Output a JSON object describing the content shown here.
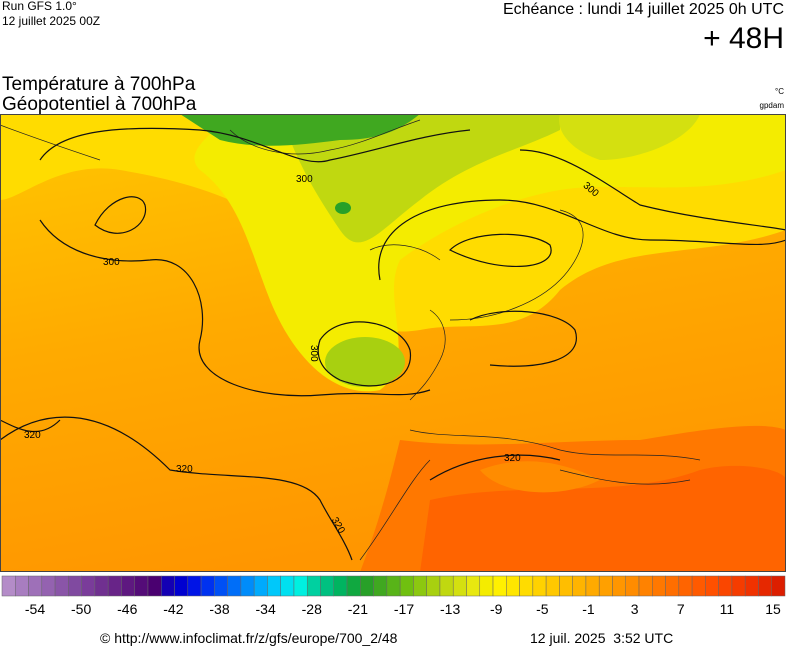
{
  "header": {
    "run": "Run GFS 1.0°",
    "date": "12 juillet 2025 00Z",
    "echeance": "Echéance : lundi 14 juillet 2025 0h UTC",
    "lead": "+ 48H"
  },
  "titles": [
    "Température à 700hPa",
    "Géopotentiel à 700hPa"
  ],
  "units": [
    "°C",
    "gpdam"
  ],
  "contour_labels": [
    "300",
    "300",
    "300",
    "300",
    "320",
    "320",
    "320",
    "320"
  ],
  "legend": {
    "labels": [
      -54,
      -50,
      -46,
      -42,
      -38,
      -34,
      -28,
      -21,
      -17,
      -13,
      -9,
      -5,
      -1,
      3,
      7,
      11,
      15
    ],
    "colors": [
      "#b48cc8",
      "#a87dc0",
      "#9e70b8",
      "#9462b0",
      "#8a55a8",
      "#804aa0",
      "#7a3c9a",
      "#703090",
      "#682488",
      "#5e1880",
      "#540c78",
      "#4a0070",
      "#1400b4",
      "#0000d0",
      "#0014e6",
      "#0032f0",
      "#0050f5",
      "#006ef8",
      "#008cfa",
      "#00aafc",
      "#00c8fa",
      "#00e0f0",
      "#00f0e0",
      "#00d0a0",
      "#00c080",
      "#00b460",
      "#10a840",
      "#28a028",
      "#40a820",
      "#58b418",
      "#70c010",
      "#8cc810",
      "#a8d010",
      "#c0d810",
      "#d4e010",
      "#e8e810",
      "#f4ec00",
      "#fff000",
      "#ffe600",
      "#ffdc00",
      "#ffd200",
      "#ffc800",
      "#ffbe00",
      "#ffb400",
      "#ffaa00",
      "#ffa000",
      "#ff9600",
      "#ff8c00",
      "#ff8200",
      "#ff7800",
      "#ff6e00",
      "#ff6400",
      "#ff5a00",
      "#ff5000",
      "#fa4600",
      "#f53c00",
      "#f03200",
      "#e62800",
      "#dc1e00"
    ]
  },
  "footer": {
    "url": "© http://www.infoclimat.fr/z/gfs/europe/700_2/48",
    "time": "12 juil. 2025  3:52 UTC"
  }
}
